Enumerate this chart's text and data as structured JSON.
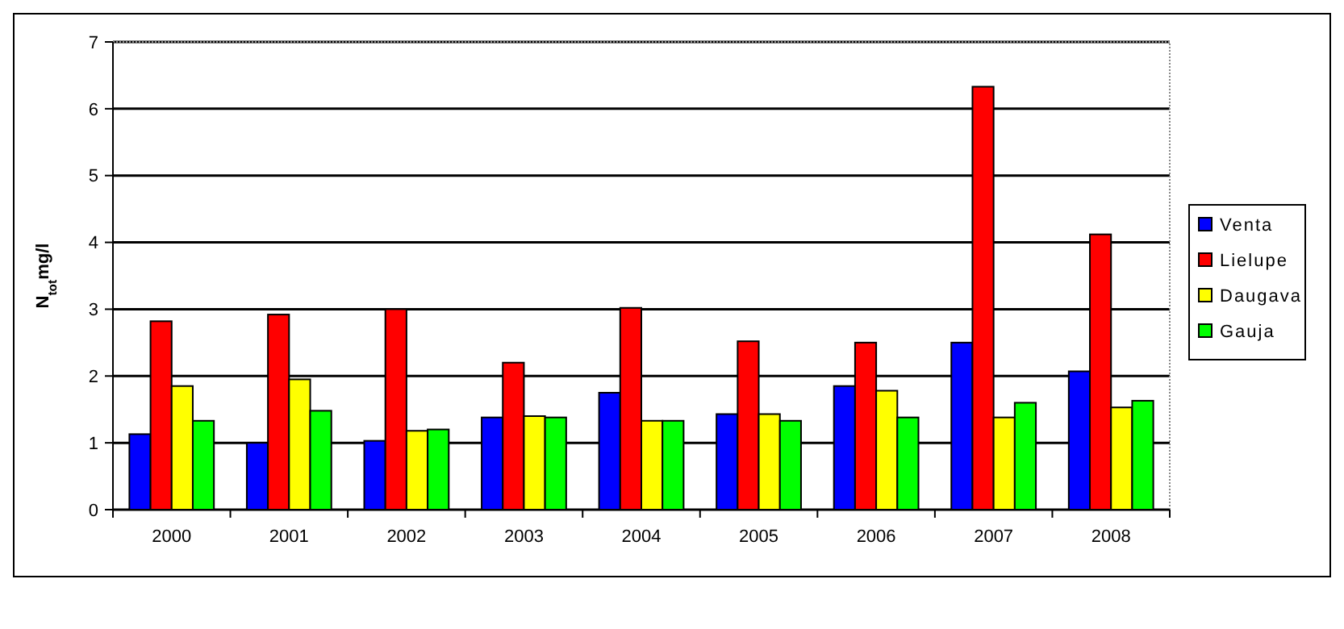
{
  "chart_data": {
    "type": "bar",
    "ylabel": "N$_{tot}$mg/l",
    "categories": [
      "2000",
      "2001",
      "2002",
      "2003",
      "2004",
      "2005",
      "2006",
      "2007",
      "2008"
    ],
    "series": [
      {
        "name": "Venta",
        "color": "#0000ff",
        "values": [
          1.13,
          1.0,
          1.03,
          1.38,
          1.75,
          1.43,
          1.85,
          2.5,
          2.07
        ]
      },
      {
        "name": "Lielupe",
        "color": "#ff0000",
        "values": [
          2.82,
          2.92,
          3.0,
          2.2,
          3.02,
          2.52,
          2.5,
          6.33,
          4.12
        ]
      },
      {
        "name": "Daugava",
        "color": "#ffff00",
        "values": [
          1.85,
          1.95,
          1.18,
          1.4,
          1.33,
          1.43,
          1.78,
          1.38,
          1.53
        ]
      },
      {
        "name": "Gauja",
        "color": "#00ff00",
        "values": [
          1.33,
          1.48,
          1.2,
          1.38,
          1.33,
          1.33,
          1.38,
          1.6,
          1.63
        ]
      }
    ],
    "ylim": [
      0,
      7
    ],
    "yticks": [
      0,
      1,
      2,
      3,
      4,
      5,
      6,
      7
    ],
    "grid": "y",
    "legend": "right"
  }
}
